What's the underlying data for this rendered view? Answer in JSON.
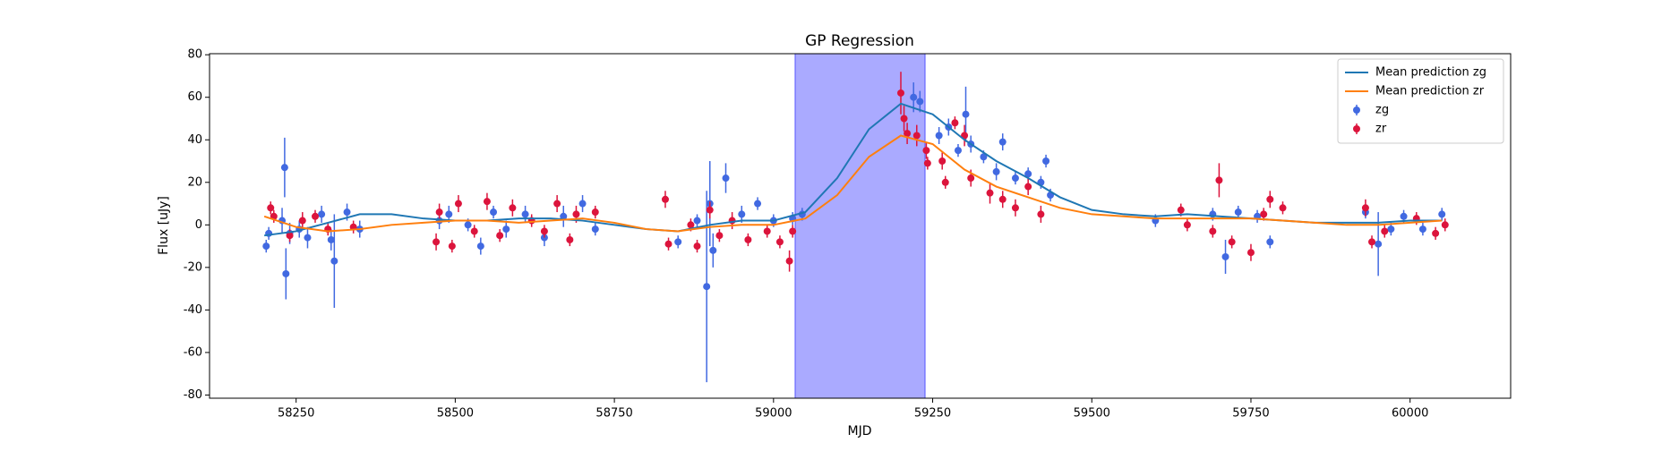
{
  "chart_data": {
    "type": "line",
    "title": "GP Regression",
    "x_label": "MJD",
    "y_label": "Flux [uJy]",
    "xlim": [
      58114,
      60158
    ],
    "ylim": [
      -81.5,
      80.5
    ],
    "xticks": [
      58250,
      58500,
      58750,
      59000,
      59250,
      59500,
      59750,
      60000
    ],
    "yticks": [
      -80,
      -60,
      -40,
      -20,
      0,
      20,
      40,
      60,
      80
    ],
    "legend": "upper right",
    "highlight": {
      "xlim": [
        59034,
        59238
      ],
      "color": "#aaaaff"
    },
    "series": [
      {
        "name": "Mean prediction zg",
        "mode": "line",
        "color": "#1f77b4",
        "x": [
          58200,
          58250,
          58300,
          58350,
          58400,
          58450,
          58500,
          58550,
          58600,
          58650,
          58700,
          58750,
          58800,
          58850,
          58900,
          58950,
          59000,
          59050,
          59100,
          59150,
          59200,
          59250,
          59300,
          59350,
          59400,
          59450,
          59500,
          59550,
          59600,
          59650,
          59700,
          59750,
          59800,
          59850,
          59900,
          59950,
          60000,
          60050
        ],
        "values": [
          -5,
          -3,
          1,
          5,
          5,
          3,
          2,
          2,
          3,
          3,
          2,
          0,
          -2,
          -3,
          0,
          2,
          2,
          6,
          22,
          45,
          57,
          52,
          40,
          30,
          22,
          13,
          7,
          5,
          4,
          5,
          4,
          3,
          2,
          1,
          1,
          1,
          2,
          2
        ]
      },
      {
        "name": "Mean prediction zr",
        "mode": "line",
        "color": "#ff7f0e",
        "x": [
          58200,
          58250,
          58300,
          58350,
          58400,
          58450,
          58500,
          58550,
          58600,
          58650,
          58700,
          58750,
          58800,
          58850,
          58900,
          58950,
          59000,
          59050,
          59100,
          59150,
          59200,
          59250,
          59300,
          59350,
          59400,
          59450,
          59500,
          59550,
          59600,
          59650,
          59700,
          59750,
          59800,
          59850,
          59900,
          59950,
          60000,
          60050
        ],
        "values": [
          4,
          -1,
          -3,
          -2,
          0,
          1,
          2,
          2,
          1,
          2,
          3,
          1,
          -2,
          -3,
          -1,
          0,
          0,
          3,
          14,
          32,
          42,
          38,
          26,
          18,
          13,
          8,
          5,
          4,
          3,
          3,
          3,
          3,
          2,
          1,
          0,
          0,
          1,
          2
        ]
      },
      {
        "name": "zg",
        "mode": "errorbar",
        "color": "#4169e1",
        "x": [
          58203,
          58207,
          58228,
          58232,
          58234,
          58240,
          58255,
          58268,
          58290,
          58305,
          58310,
          58330,
          58350,
          58475,
          58490,
          58520,
          58540,
          58560,
          58580,
          58610,
          58640,
          58670,
          58700,
          58720,
          58850,
          58880,
          58895,
          58900,
          58905,
          58925,
          58950,
          58975,
          59000,
          59030,
          59045,
          59220,
          59230,
          59260,
          59275,
          59290,
          59302,
          59310,
          59330,
          59350,
          59360,
          59380,
          59400,
          59420,
          59428,
          59435,
          59600,
          59690,
          59710,
          59730,
          59760,
          59780,
          59930,
          59950,
          59970,
          59990,
          60020,
          60050
        ],
        "values": [
          -10,
          -4,
          2,
          27,
          -23,
          -4,
          -2,
          -6,
          5,
          -7,
          -17,
          6,
          -2,
          2,
          5,
          0,
          -10,
          6,
          -2,
          5,
          -6,
          4,
          10,
          -2,
          -8,
          2,
          -29,
          10,
          -12,
          22,
          5,
          10,
          2,
          3,
          5,
          60,
          58,
          42,
          46,
          35,
          52,
          38,
          32,
          25,
          39,
          22,
          24,
          20,
          30,
          14,
          2,
          5,
          -15,
          6,
          4,
          -8,
          6,
          -9,
          -2,
          4,
          -2,
          5
        ],
        "errors": [
          3,
          3,
          6,
          14,
          12,
          5,
          4,
          5,
          4,
          5,
          22,
          4,
          4,
          4,
          4,
          3,
          4,
          3,
          4,
          4,
          4,
          5,
          4,
          3,
          3,
          3,
          45,
          20,
          8,
          7,
          4,
          3,
          3,
          3,
          3,
          7,
          5,
          4,
          4,
          3,
          13,
          4,
          3,
          4,
          4,
          3,
          3,
          3,
          3,
          3,
          3,
          3,
          8,
          3,
          3,
          3,
          3,
          15,
          3,
          3,
          3,
          3
        ]
      },
      {
        "name": "zr",
        "mode": "errorbar",
        "color": "#dc143c",
        "x": [
          58210,
          58215,
          58240,
          58260,
          58280,
          58300,
          58340,
          58470,
          58475,
          58495,
          58505,
          58530,
          58550,
          58570,
          58590,
          58620,
          58640,
          58660,
          58680,
          58690,
          58720,
          58830,
          58835,
          58870,
          58880,
          58900,
          58915,
          58935,
          58960,
          58990,
          59010,
          59025,
          59030,
          59200,
          59205,
          59210,
          59225,
          59240,
          59242,
          59265,
          59270,
          59285,
          59300,
          59310,
          59340,
          59360,
          59380,
          59400,
          59420,
          59640,
          59650,
          59690,
          59700,
          59720,
          59750,
          59770,
          59780,
          59800,
          59930,
          59940,
          59960,
          60010,
          60040,
          60055
        ],
        "values": [
          8,
          4,
          -5,
          2,
          4,
          -2,
          -1,
          -8,
          6,
          -10,
          10,
          -3,
          11,
          -5,
          8,
          2,
          -3,
          10,
          -7,
          5,
          6,
          12,
          -9,
          0,
          -10,
          7,
          -5,
          2,
          -7,
          -3,
          -8,
          -17,
          -3,
          62,
          50,
          43,
          42,
          35,
          29,
          30,
          20,
          48,
          42,
          22,
          15,
          12,
          8,
          18,
          5,
          7,
          0,
          -3,
          21,
          -8,
          -13,
          5,
          12,
          8,
          8,
          -8,
          -3,
          3,
          -4,
          0
        ],
        "errors": [
          3,
          3,
          3,
          4,
          3,
          3,
          3,
          4,
          4,
          3,
          4,
          3,
          4,
          3,
          4,
          3,
          3,
          4,
          3,
          4,
          3,
          4,
          3,
          3,
          3,
          4,
          3,
          4,
          3,
          3,
          3,
          5,
          3,
          10,
          6,
          5,
          5,
          4,
          3,
          4,
          3,
          3,
          5,
          4,
          5,
          4,
          4,
          4,
          4,
          3,
          3,
          3,
          8,
          3,
          4,
          3,
          4,
          3,
          4,
          3,
          3,
          3,
          3,
          3
        ]
      }
    ]
  }
}
